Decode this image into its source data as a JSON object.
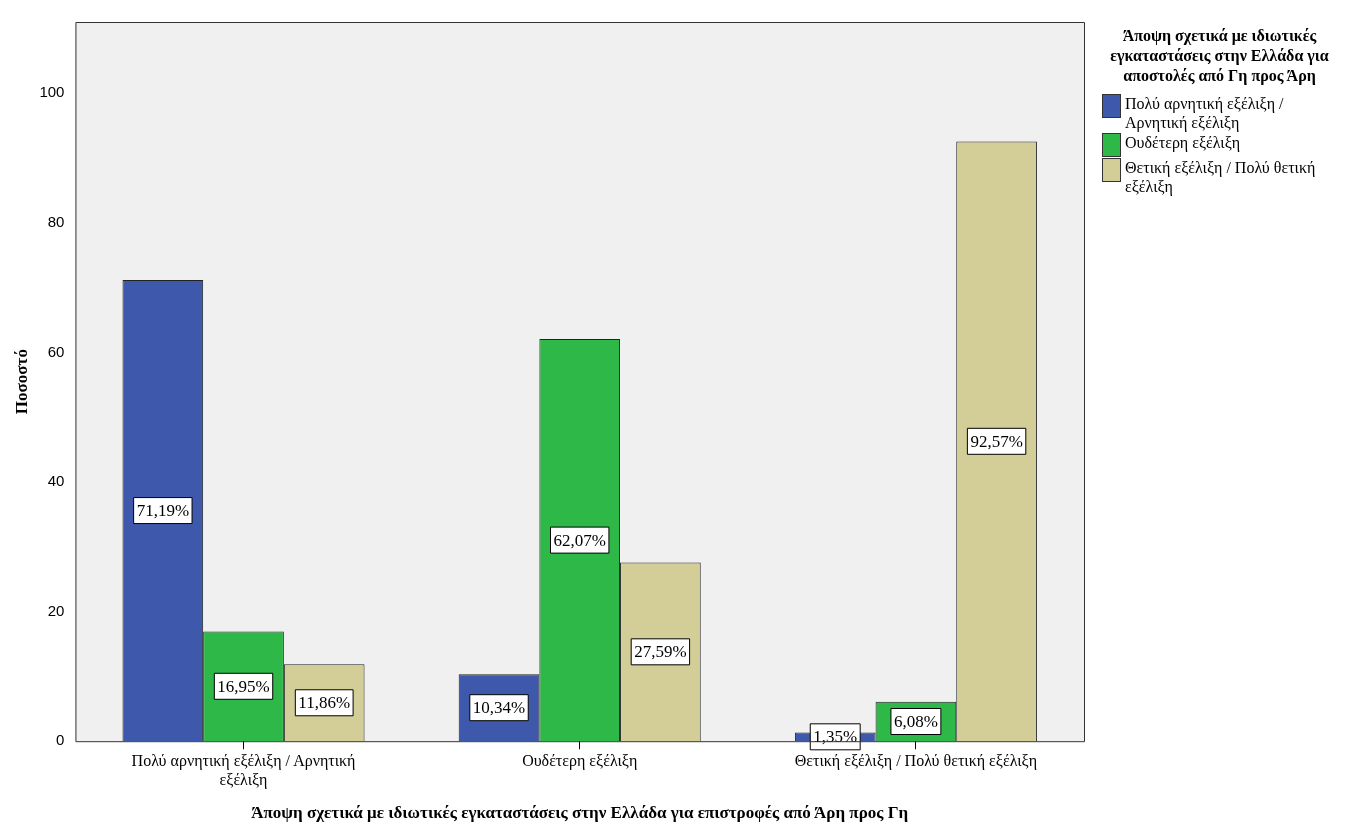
{
  "chart_data": {
    "type": "bar",
    "xlabel": "Άποψη σχετικά με ιδιωτικές εγκαταστάσεις στην Ελλάδα για επιστροφές από Άρη προς Γη",
    "ylabel": "Ποσοστό",
    "legend_title": "Άποψη σχετικά με ιδιωτικές εγκαταστάσεις στην Ελλάδα για αποστολές από Γη προς Άρη",
    "categories": [
      "Πολύ αρνητική εξέλιξη / Αρνητική εξέλιξη",
      "Ουδέτερη εξέλιξη",
      "Θετική εξέλιξη / Πολύ θετική εξέλιξη"
    ],
    "series": [
      {
        "name": "Πολύ αρνητική εξέλιξη / Αρνητική εξέλιξη",
        "color": "#3e58ac",
        "values": [
          71.19,
          10.34,
          1.35
        ],
        "value_labels": [
          "71,19%",
          "10,34%",
          "1,35%"
        ]
      },
      {
        "name": "Ουδέτερη εξέλιξη",
        "color": "#2eb848",
        "values": [
          16.95,
          62.07,
          6.08
        ],
        "value_labels": [
          "16,95%",
          "62,07%",
          "6,08%"
        ]
      },
      {
        "name": "Θετική εξέλιξη / Πολύ θετική εξέλιξη",
        "color": "#d3ce97",
        "values": [
          11.86,
          27.59,
          92.57
        ],
        "value_labels": [
          "11,86%",
          "27,59%",
          "92,57%"
        ]
      }
    ],
    "ylim": [
      0,
      111
    ],
    "yticks": [
      0,
      20,
      40,
      60,
      80,
      100
    ],
    "grid": false,
    "legend": "top right"
  }
}
